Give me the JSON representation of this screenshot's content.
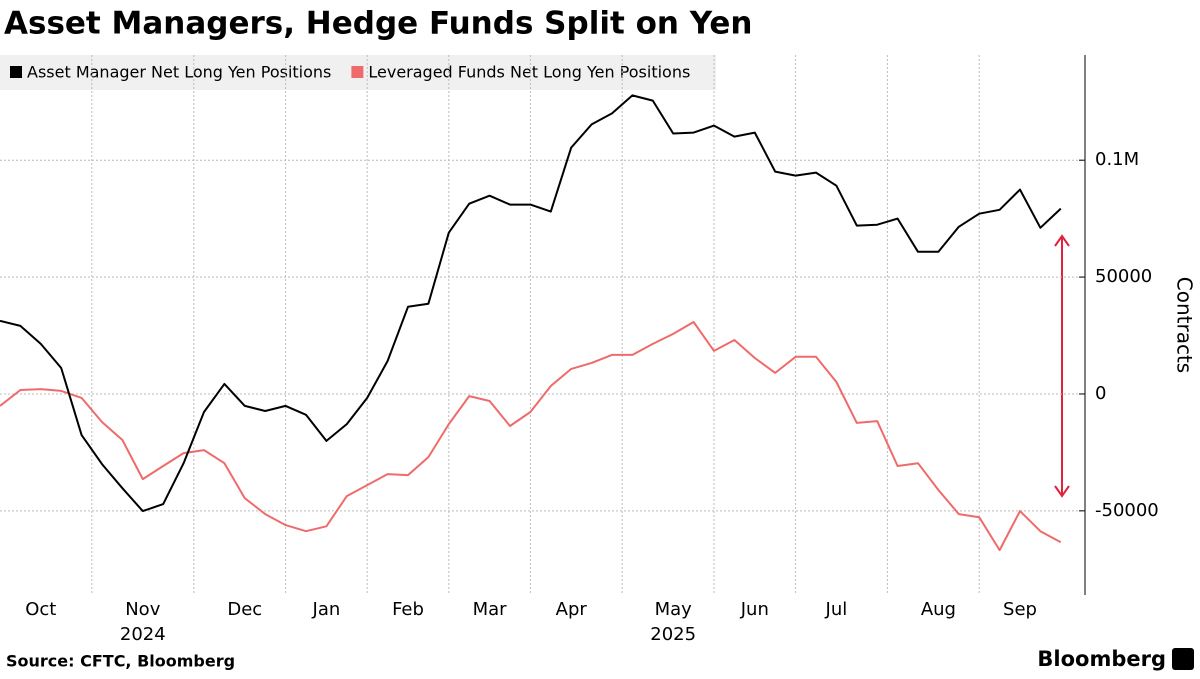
{
  "chart_data": {
    "type": "line",
    "title": "Asset Managers, Hedge Funds Split on Yen",
    "source": "Source: CFTC, Bloomberg",
    "brand": "Bloomberg",
    "y_label": "Contracts",
    "categories": [
      null,
      null,
      "Oct",
      null,
      null,
      null,
      null,
      "Nov",
      null,
      null,
      null,
      null,
      "Dec",
      null,
      null,
      null,
      "Jan",
      null,
      null,
      null,
      "Feb",
      null,
      null,
      null,
      "Mar",
      null,
      null,
      null,
      "Apr",
      null,
      null,
      null,
      null,
      "May",
      null,
      null,
      null,
      "Jun",
      null,
      null,
      null,
      "Jul",
      null,
      null,
      null,
      null,
      "Aug",
      null,
      null,
      null,
      "Sep",
      null,
      null
    ],
    "category_years": [
      null,
      null,
      null,
      null,
      null,
      null,
      null,
      "2024",
      null,
      null,
      null,
      null,
      null,
      null,
      null,
      null,
      null,
      null,
      null,
      null,
      null,
      null,
      null,
      null,
      null,
      null,
      null,
      null,
      null,
      null,
      null,
      null,
      null,
      "2025",
      null,
      null,
      null,
      null,
      null,
      null,
      null,
      null,
      null,
      null,
      null,
      null,
      null,
      null,
      null,
      null,
      null,
      null,
      null
    ],
    "series": [
      {
        "name": "Asset Manager Net Long Yen Positions",
        "color": "#000000",
        "values": [
          31300,
          29100,
          21400,
          11100,
          -17600,
          -30000,
          -40300,
          -50100,
          -47100,
          -29600,
          -7700,
          4300,
          -5100,
          -7300,
          -5100,
          -8900,
          -20100,
          -12900,
          -1700,
          14100,
          37300,
          38600,
          69000,
          81400,
          84800,
          81000,
          81000,
          78000,
          105400,
          115300,
          120000,
          127700,
          125500,
          111400,
          111800,
          114800,
          110100,
          111800,
          95100,
          93400,
          94700,
          89100,
          72000,
          72400,
          75000,
          60800,
          60800,
          71500,
          77100,
          78800,
          87400,
          71100,
          79300
        ]
      },
      {
        "name": "Leveraged Funds Net Long Yen Positions",
        "color": "#ef6b6b",
        "values": [
          -5100,
          1700,
          2100,
          1300,
          -1700,
          -12000,
          -19700,
          -36400,
          -30800,
          -25300,
          -24000,
          -29600,
          -44600,
          -51400,
          -56100,
          -58700,
          -56600,
          -43700,
          -39000,
          -34300,
          -34700,
          -27000,
          -12900,
          -900,
          -3000,
          -13700,
          -7700,
          3400,
          10700,
          13300,
          16700,
          16700,
          21400,
          25700,
          30800,
          18400,
          23100,
          15400,
          9000,
          15900,
          15900,
          5100,
          -12400,
          -11600,
          -30800,
          -29600,
          -41100,
          -51400,
          -52700,
          -66800,
          -50100,
          -58700,
          -63400
        ]
      }
    ],
    "ylim": [
      -86000,
      145000
    ],
    "yticks": [
      {
        "value": 100000,
        "label": "0.1M"
      },
      50000,
      0,
      -50000
    ],
    "grid": true
  }
}
